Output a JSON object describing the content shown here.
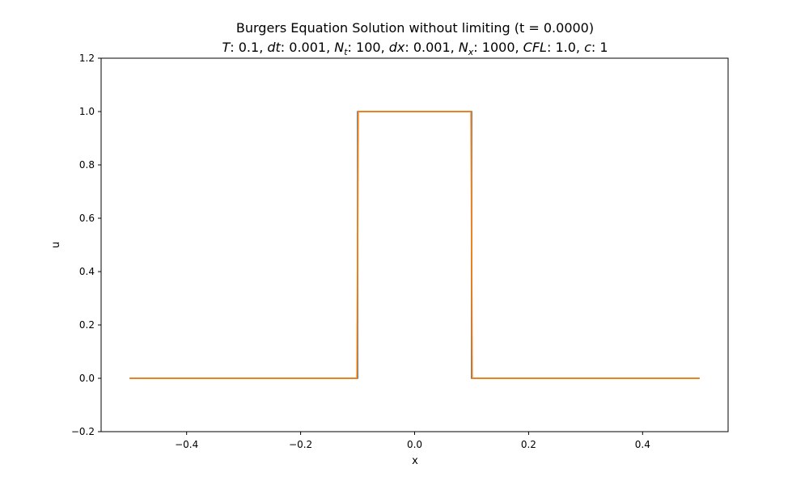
{
  "chart_data": {
    "type": "line",
    "title": "Burgers Equation Solution without limiting (t = 0.0000)",
    "subtitle_parts": [
      {
        "text": "T",
        "style": "italic"
      },
      {
        "text": ": 0.1, ",
        "style": "normal"
      },
      {
        "text": "dt",
        "style": "italic"
      },
      {
        "text": ": 0.001, ",
        "style": "normal"
      },
      {
        "text": "N",
        "style": "italic"
      },
      {
        "text": "t",
        "style": "italic-sub"
      },
      {
        "text": ": 100, ",
        "style": "normal"
      },
      {
        "text": "dx",
        "style": "italic"
      },
      {
        "text": ": 0.001, ",
        "style": "normal"
      },
      {
        "text": "N",
        "style": "italic"
      },
      {
        "text": "x",
        "style": "italic-sub"
      },
      {
        "text": ": 1000, ",
        "style": "normal"
      },
      {
        "text": "CFL",
        "style": "italic"
      },
      {
        "text": ": 1.0, ",
        "style": "normal"
      },
      {
        "text": "c",
        "style": "italic"
      },
      {
        "text": ": 1",
        "style": "normal"
      }
    ],
    "xlabel": "x",
    "ylabel": "u",
    "xlim": [
      -0.55,
      0.55
    ],
    "ylim": [
      -0.2,
      1.2
    ],
    "xticks": [
      -0.4,
      -0.2,
      0.0,
      0.2,
      0.4
    ],
    "xtick_labels": [
      "−0.4",
      "−0.2",
      "0.0",
      "0.2",
      "0.4"
    ],
    "yticks": [
      -0.2,
      0.0,
      0.2,
      0.4,
      0.6,
      0.8,
      1.0,
      1.2
    ],
    "ytick_labels": [
      "−0.2",
      "0.0",
      "0.2",
      "0.4",
      "0.6",
      "0.8",
      "1.0",
      "1.2"
    ],
    "grid": false,
    "series": [
      {
        "color": "#1f77b4",
        "x": [
          -0.5,
          -0.1,
          -0.1,
          0.1,
          0.1,
          0.5
        ],
        "y": [
          0,
          0,
          1,
          1,
          0,
          0
        ]
      },
      {
        "color": "#ff7f0e",
        "x": [
          -0.5,
          -0.101,
          -0.099,
          0.099,
          0.101,
          0.5
        ],
        "y": [
          0,
          0,
          1,
          1,
          0,
          0
        ]
      }
    ]
  }
}
